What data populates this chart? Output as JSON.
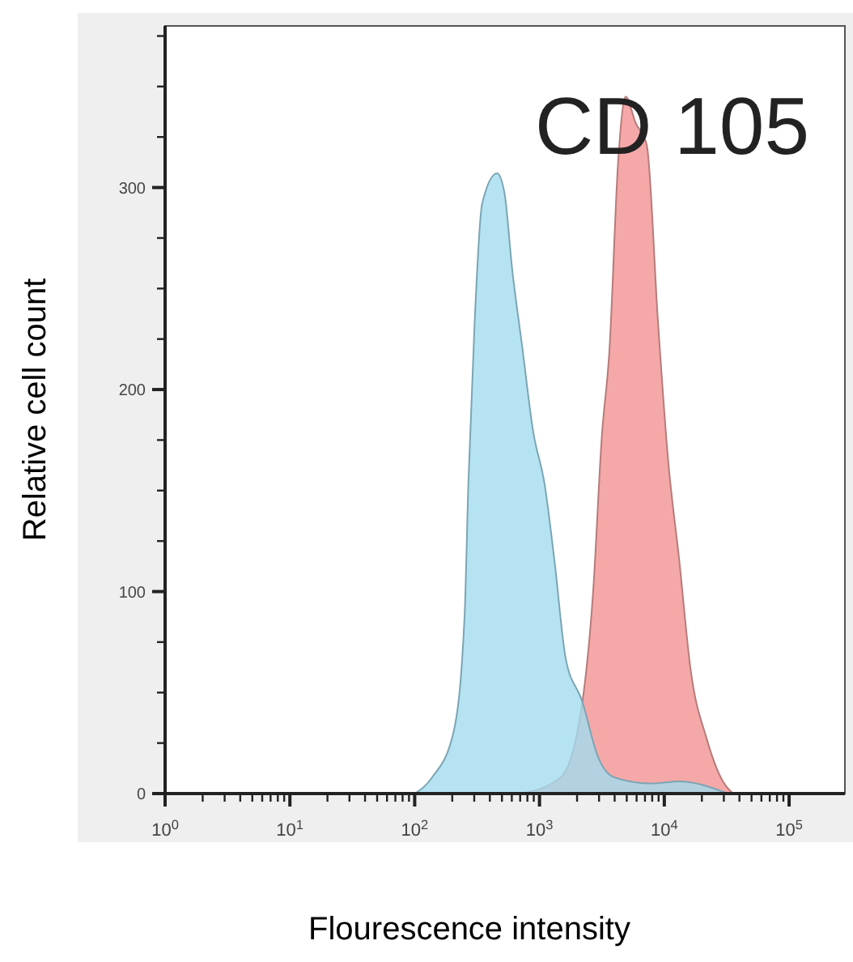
{
  "chart_data": {
    "type": "area",
    "xlabel": "Flourescence intensity",
    "ylabel": "Relative cell count",
    "annotations": [
      "CD 105"
    ],
    "log": "x",
    "grid": false,
    "xlim": [
      1,
      280000
    ],
    "xticks": [
      {
        "value": 1,
        "label": "10$^{0}$"
      },
      {
        "value": 2,
        "label": null
      },
      {
        "value": 3,
        "label": null
      },
      {
        "value": 4,
        "label": null
      },
      {
        "value": 5,
        "label": null
      },
      {
        "value": 6,
        "label": null
      },
      {
        "value": 7,
        "label": null
      },
      {
        "value": 8,
        "label": null
      },
      {
        "value": 9,
        "label": null
      },
      {
        "value": 10,
        "label": "10$^{1}$"
      },
      {
        "value": 20,
        "label": null
      },
      {
        "value": 30,
        "label": null
      },
      {
        "value": 40,
        "label": null
      },
      {
        "value": 50,
        "label": null
      },
      {
        "value": 60,
        "label": null
      },
      {
        "value": 70,
        "label": null
      },
      {
        "value": 80,
        "label": null
      },
      {
        "value": 90,
        "label": null
      },
      {
        "value": 100,
        "label": "10$^{2}$"
      },
      {
        "value": 200,
        "label": null
      },
      {
        "value": 300,
        "label": null
      },
      {
        "value": 400,
        "label": null
      },
      {
        "value": 500,
        "label": null
      },
      {
        "value": 600,
        "label": null
      },
      {
        "value": 700,
        "label": null
      },
      {
        "value": 800,
        "label": null
      },
      {
        "value": 900,
        "label": null
      },
      {
        "value": 1000,
        "label": "10$^{3}$"
      },
      {
        "value": 2000,
        "label": null
      },
      {
        "value": 3000,
        "label": null
      },
      {
        "value": 4000,
        "label": null
      },
      {
        "value": 5000,
        "label": null
      },
      {
        "value": 6000,
        "label": null
      },
      {
        "value": 7000,
        "label": null
      },
      {
        "value": 8000,
        "label": null
      },
      {
        "value": 9000,
        "label": null
      },
      {
        "value": 10000,
        "label": "10$^{4}$"
      },
      {
        "value": 20000,
        "label": null
      },
      {
        "value": 30000,
        "label": null
      },
      {
        "value": 40000,
        "label": null
      },
      {
        "value": 50000,
        "label": null
      },
      {
        "value": 60000,
        "label": null
      },
      {
        "value": 70000,
        "label": null
      },
      {
        "value": 80000,
        "label": null
      },
      {
        "value": 90000,
        "label": null
      },
      {
        "value": 100000,
        "label": "10$^{5}$"
      }
    ],
    "ylim": [
      0,
      380
    ],
    "yticks": [
      0,
      {
        "value": 25,
        "label": null
      },
      {
        "value": 50,
        "label": null
      },
      {
        "value": 75,
        "label": null
      },
      100,
      {
        "value": 125,
        "label": null
      },
      {
        "value": 150,
        "label": null
      },
      {
        "value": 175,
        "label": null
      },
      200,
      {
        "value": 225,
        "label": null
      },
      {
        "value": 250,
        "label": null
      },
      {
        "value": 275,
        "label": null
      },
      300,
      {
        "value": 325,
        "label": null
      },
      {
        "value": 350,
        "label": null
      },
      {
        "value": 375,
        "label": null
      }
    ],
    "series": [
      {
        "color": "#f4a3a3",
        "x": [
          720,
          1480,
          2190,
          2690,
          3160,
          3630,
          4270,
          4900,
          5890,
          7240,
          8910,
          10700,
          13200,
          16200,
          21900,
          29500,
          35500
        ],
        "values": [
          0,
          8,
          44,
          100,
          177,
          219,
          313,
          345,
          332,
          321,
          233,
          166,
          115,
          62,
          27,
          6,
          0
        ]
      },
      {
        "color": "#a3dcef",
        "x": [
          100,
          138,
          204,
          251,
          269,
          302,
          347,
          457,
          525,
          603,
          724,
          891,
          1100,
          1320,
          1620,
          2190,
          2950,
          3980,
          7940,
          13200,
          32400
        ],
        "values": [
          0,
          8,
          30,
          88,
          153,
          233,
          292,
          307,
          297,
          260,
          222,
          179,
          153,
          115,
          67,
          46,
          18,
          8,
          5,
          6,
          0
        ]
      }
    ]
  }
}
